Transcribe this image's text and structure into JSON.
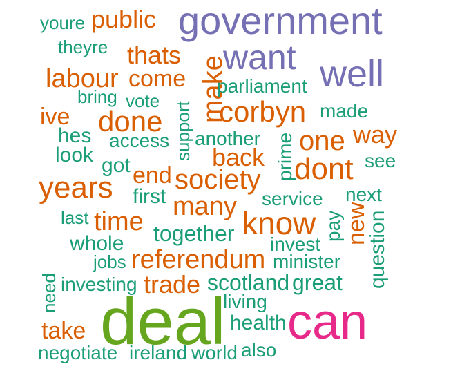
{
  "palette": {
    "teal": "#1b9e77",
    "orange": "#d95f02",
    "purple": "#7570b3",
    "pink": "#e7298a",
    "green": "#66a61e"
  },
  "words": [
    {
      "text": "youre",
      "color": "teal"
    },
    {
      "text": "public",
      "color": "orange"
    },
    {
      "text": "government",
      "color": "purple"
    },
    {
      "text": "theyre",
      "color": "teal"
    },
    {
      "text": "thats",
      "color": "orange"
    },
    {
      "text": "want",
      "color": "purple"
    },
    {
      "text": "well",
      "color": "purple"
    },
    {
      "text": "labour",
      "color": "orange"
    },
    {
      "text": "come",
      "color": "orange"
    },
    {
      "text": "make",
      "color": "orange"
    },
    {
      "text": "parliament",
      "color": "teal"
    },
    {
      "text": "bring",
      "color": "teal"
    },
    {
      "text": "vote",
      "color": "teal"
    },
    {
      "text": "support",
      "color": "teal"
    },
    {
      "text": "ive",
      "color": "orange"
    },
    {
      "text": "done",
      "color": "orange"
    },
    {
      "text": "corbyn",
      "color": "orange"
    },
    {
      "text": "made",
      "color": "teal"
    },
    {
      "text": "hes",
      "color": "teal"
    },
    {
      "text": "access",
      "color": "teal"
    },
    {
      "text": "another",
      "color": "teal"
    },
    {
      "text": "one",
      "color": "orange"
    },
    {
      "text": "way",
      "color": "orange"
    },
    {
      "text": "look",
      "color": "teal"
    },
    {
      "text": "got",
      "color": "teal"
    },
    {
      "text": "back",
      "color": "orange"
    },
    {
      "text": "prime",
      "color": "teal"
    },
    {
      "text": "dont",
      "color": "orange"
    },
    {
      "text": "see",
      "color": "teal"
    },
    {
      "text": "years",
      "color": "orange"
    },
    {
      "text": "end",
      "color": "orange"
    },
    {
      "text": "society",
      "color": "orange"
    },
    {
      "text": "first",
      "color": "teal"
    },
    {
      "text": "many",
      "color": "orange"
    },
    {
      "text": "service",
      "color": "teal"
    },
    {
      "text": "next",
      "color": "teal"
    },
    {
      "text": "new",
      "color": "orange"
    },
    {
      "text": "last",
      "color": "teal"
    },
    {
      "text": "time",
      "color": "orange"
    },
    {
      "text": "know",
      "color": "orange"
    },
    {
      "text": "pay",
      "color": "teal"
    },
    {
      "text": "together",
      "color": "teal"
    },
    {
      "text": "question",
      "color": "teal"
    },
    {
      "text": "whole",
      "color": "teal"
    },
    {
      "text": "invest",
      "color": "teal"
    },
    {
      "text": "jobs",
      "color": "teal"
    },
    {
      "text": "referendum",
      "color": "orange"
    },
    {
      "text": "minister",
      "color": "teal"
    },
    {
      "text": "need",
      "color": "teal"
    },
    {
      "text": "investing",
      "color": "teal"
    },
    {
      "text": "trade",
      "color": "orange"
    },
    {
      "text": "scotland",
      "color": "teal"
    },
    {
      "text": "great",
      "color": "teal"
    },
    {
      "text": "living",
      "color": "teal"
    },
    {
      "text": "deal",
      "color": "green"
    },
    {
      "text": "health",
      "color": "teal"
    },
    {
      "text": "can",
      "color": "pink"
    },
    {
      "text": "take",
      "color": "orange"
    },
    {
      "text": "negotiate",
      "color": "teal"
    },
    {
      "text": "ireland",
      "color": "teal"
    },
    {
      "text": "world",
      "color": "teal"
    },
    {
      "text": "also",
      "color": "teal"
    }
  ]
}
